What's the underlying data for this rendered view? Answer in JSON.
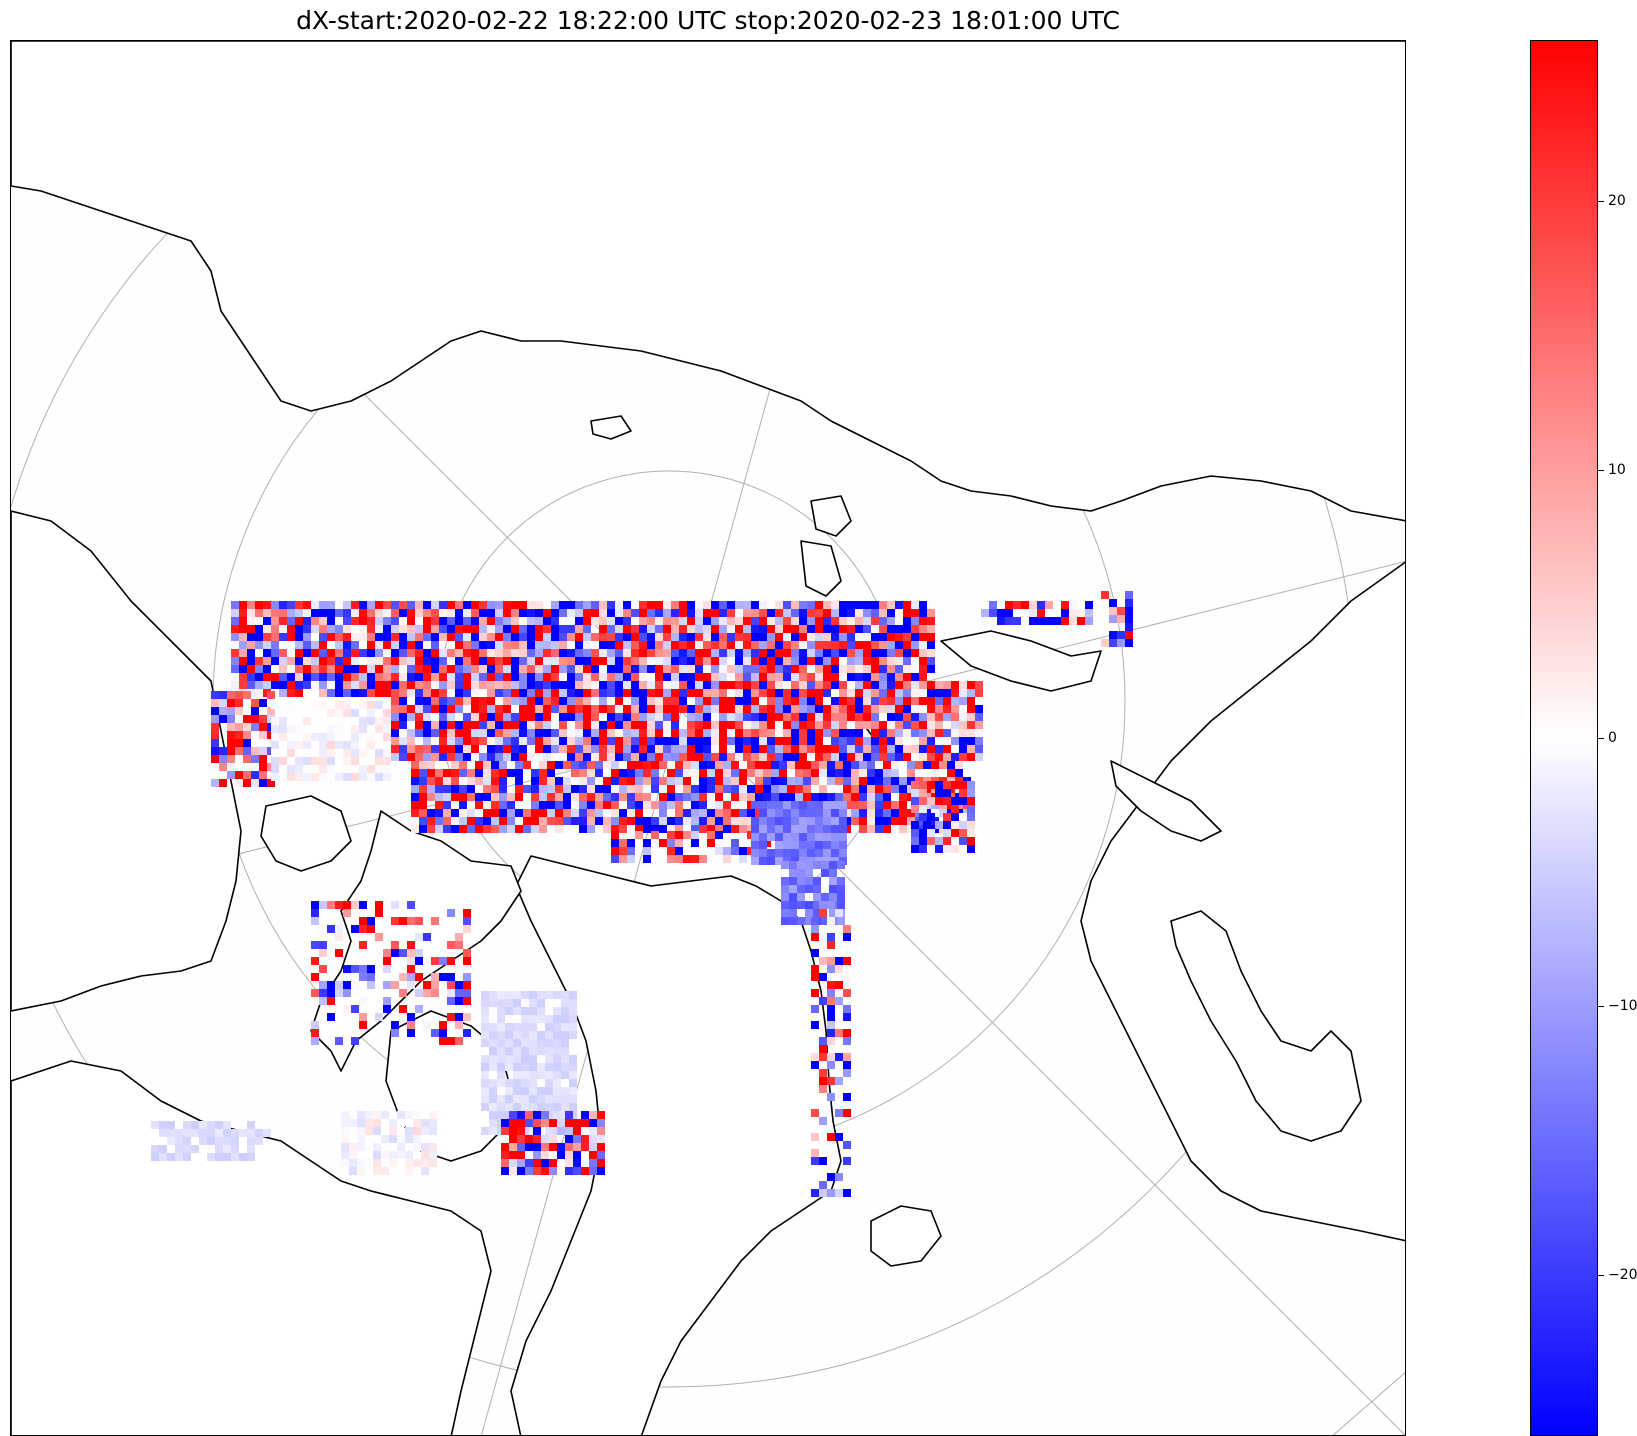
{
  "title": "dX-start:2020-02-22 18:22:00 UTC stop:2020-02-23 18:01:00 UTC",
  "colormap": {
    "name": "bwr",
    "low_color": "#0000ff",
    "mid_color": "#ffffff",
    "high_color": "#ff0000",
    "vmin": -26,
    "vmax": 26
  },
  "colorbar": {
    "ticks": [
      {
        "value": 20,
        "label": "20"
      },
      {
        "value": 10,
        "label": "10"
      },
      {
        "value": 0,
        "label": "0"
      },
      {
        "value": -10,
        "label": "−10"
      },
      {
        "value": -20,
        "label": "−20"
      }
    ]
  },
  "map": {
    "projection": "north-polar-stereographic",
    "graticule_color": "#b0b0b0",
    "coastline_color": "#000000"
  }
}
